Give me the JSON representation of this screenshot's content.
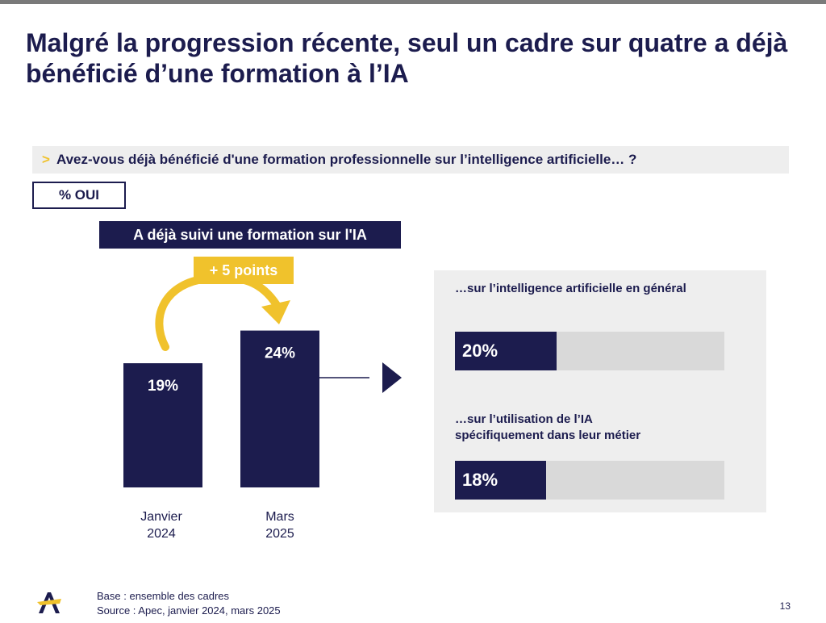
{
  "title": "Malgré la progression récente, seul un cadre sur quatre a déjà bénéficié d’une formation à l’IA",
  "question": {
    "prefix": ">",
    "text": "Avez-vous déjà bénéficié d'une formation professionnelle sur l’intelligence artificielle… ?"
  },
  "badge": "% OUI",
  "band_label": "A déjà suivi une formation sur l'IA",
  "change_label": "+ 5 points",
  "colors": {
    "navy": "#1c1c4e",
    "yellow": "#f0c22c",
    "grey_panel": "#eeeeee",
    "grey_track": "#d9d9d9"
  },
  "chart_data": [
    {
      "type": "bar",
      "title": "A déjà suivi une formation sur l'IA",
      "unit": "%",
      "categories": [
        [
          "Janvier",
          "2024"
        ],
        [
          "Mars",
          "2025"
        ]
      ],
      "values": [
        19,
        24
      ],
      "value_labels": [
        "19%",
        "24%"
      ],
      "ylim": [
        0,
        30
      ]
    },
    {
      "type": "bar",
      "orientation": "horizontal",
      "unit": "%",
      "categories": [
        [
          "…sur l’intelligence artificielle en général"
        ],
        [
          "…sur l’utilisation de l’IA",
          "spécifiquement dans leur métier"
        ]
      ],
      "values": [
        20,
        18
      ],
      "value_labels": [
        "20%",
        "18%"
      ],
      "xlim": [
        0,
        53
      ]
    }
  ],
  "footer": {
    "base": "Base : ensemble des cadres",
    "source": "Source : Apec, janvier 2024, mars 2025"
  },
  "page_number": "13",
  "logo_icon": "apec-logo-icon"
}
